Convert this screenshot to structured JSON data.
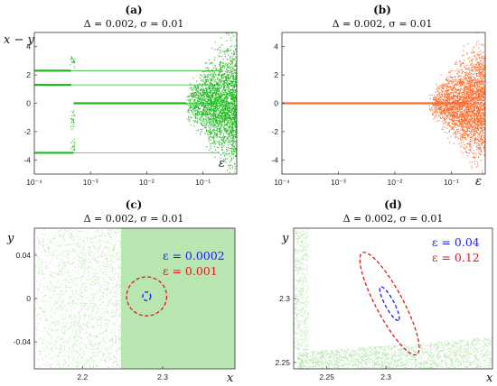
{
  "chart_data": [
    {
      "id": "a",
      "panel_label": "(a)",
      "type": "scatter",
      "subtitle": "Δ = 0.002, σ = 0.01",
      "ylabel": "x − y",
      "xlabel": "ε",
      "xscale": "log",
      "xlim": [
        0.0001,
        0.4
      ],
      "ylim": [
        -5,
        5
      ],
      "xticks": [
        0.0001,
        0.001,
        0.01,
        0.1
      ],
      "xticklabels": [
        "10⁻⁴",
        "10⁻³",
        "10⁻²",
        "10⁻¹"
      ],
      "yticks": [
        -4,
        -2,
        0,
        2,
        4
      ],
      "yticklabels": [
        "-4",
        "-2",
        "0",
        "2",
        "4"
      ],
      "color": "#1fb81f",
      "branches": [
        {
          "y": 2.3,
          "x_range": [
            0.0001,
            0.2
          ]
        },
        {
          "y": 1.3,
          "x_range": [
            0.0001,
            0.2
          ]
        },
        {
          "y": 0.0,
          "x_range": [
            0.0005,
            0.2
          ]
        },
        {
          "y": -3.5,
          "x_range": [
            0.0001,
            0.2
          ]
        }
      ],
      "chaotic_region": {
        "x_range": [
          0.05,
          0.4
        ],
        "y_range": [
          -5,
          5
        ]
      },
      "grid": false
    },
    {
      "id": "b",
      "panel_label": "(b)",
      "type": "scatter",
      "subtitle": "Δ = 0.002, σ = 0.01",
      "xlabel": "ε",
      "xscale": "log",
      "xlim": [
        0.0001,
        0.4
      ],
      "ylim": [
        -5,
        5
      ],
      "xticks": [
        0.0001,
        0.001,
        0.01,
        0.1
      ],
      "xticklabels": [
        "10⁻⁴",
        "10⁻³",
        "10⁻²",
        "10⁻¹"
      ],
      "yticks": [
        -4,
        -2,
        0,
        2,
        4
      ],
      "yticklabels": [
        "-4",
        "-2",
        "0",
        "2",
        "4"
      ],
      "color": "#ff6a2a",
      "branches": [
        {
          "y": 0.0,
          "x_range": [
            0.0001,
            0.2
          ]
        }
      ],
      "chaotic_region": {
        "x_range": [
          0.04,
          0.4
        ],
        "y_range": [
          -5,
          5
        ]
      },
      "grid": false
    },
    {
      "id": "c",
      "panel_label": "(c)",
      "type": "scatter",
      "subtitle": "Δ = 0.002, σ = 0.01",
      "xlabel": "x",
      "ylabel": "y",
      "xlim": [
        2.14,
        2.39
      ],
      "ylim": [
        -0.065,
        0.065
      ],
      "xticks": [
        2.2,
        2.3
      ],
      "xticklabels": [
        "2.2",
        "2.3"
      ],
      "yticks": [
        0.04,
        0,
        -0.04
      ],
      "yticklabels": [
        "0.04",
        "0",
        "-0.04"
      ],
      "attractor_color": "#b8e6b0",
      "ellipses": [
        {
          "label": "ε = 0.0002",
          "color": "#1a1aff",
          "center": [
            2.28,
            0.002
          ],
          "radii": [
            0.005,
            0.004
          ]
        },
        {
          "label": "ε = 0.001",
          "color": "#e8141a",
          "center": [
            2.28,
            0.002
          ],
          "radii": [
            0.025,
            0.018
          ]
        }
      ],
      "grid": false
    },
    {
      "id": "d",
      "panel_label": "(d)",
      "type": "scatter",
      "subtitle": "Δ = 0.002, σ = 0.01",
      "xlabel": "x",
      "ylabel": "y",
      "xlim": [
        2.222,
        2.39
      ],
      "ylim": [
        2.245,
        2.355
      ],
      "xticks": [
        2.25,
        2.3
      ],
      "xticklabels": [
        "2.25",
        "2.3"
      ],
      "yticks": [
        2.25,
        2.3
      ],
      "yticklabels": [
        "2.25",
        "2.3"
      ],
      "attractor_color": "#b8e6b0",
      "ellipses": [
        {
          "label": "ε = 0.04",
          "color": "#1a1aff",
          "center": [
            2.303,
            2.296
          ],
          "radii": [
            0.016,
            0.004
          ],
          "tilt_deg": -62
        },
        {
          "label": "ε = 0.12",
          "color": "#e8141a",
          "center": [
            2.303,
            2.296
          ],
          "radii": [
            0.048,
            0.012
          ],
          "tilt_deg": -62
        }
      ],
      "grid": false
    }
  ]
}
